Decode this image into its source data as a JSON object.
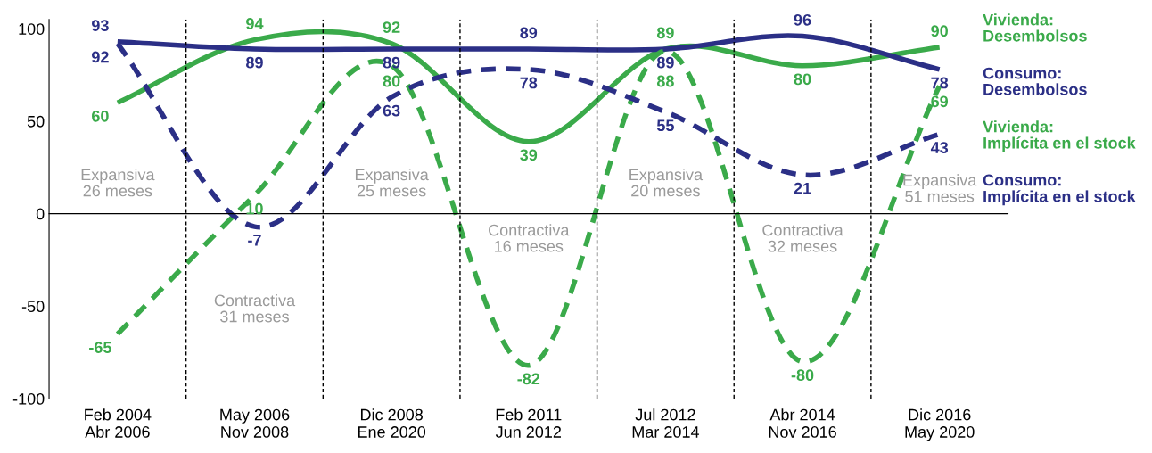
{
  "chart_data": {
    "type": "line",
    "categories": [
      "Feb 2004\nAbr 2006",
      "May 2006\nNov 2008",
      "Dic 2008\nEne 2020",
      "Feb 2011\nJun 2012",
      "Jul 2012\nMar 2014",
      "Abr 2014\nNov 2016",
      "Dic 2016\nMay 2020"
    ],
    "series": [
      {
        "name": "Vivienda:\nDesembolsos",
        "color": "#3aaa4a",
        "line_style": "solid",
        "values": [
          60,
          94,
          92,
          39,
          89,
          80,
          90
        ]
      },
      {
        "name": "Consumo:\nDesembolsos",
        "color": "#2b2f86",
        "line_style": "solid",
        "values": [
          93,
          89,
          89,
          89,
          89,
          96,
          78
        ]
      },
      {
        "name": "Vivienda:\nImplícita en el stock",
        "color": "#3aaa4a",
        "line_style": "dashed",
        "values": [
          -65,
          10,
          80,
          -82,
          88,
          -80,
          69
        ]
      },
      {
        "name": "Consumo:\nImplícita en el stock",
        "color": "#2b2f86",
        "line_style": "dashed",
        "values": [
          92,
          -7,
          63,
          78,
          55,
          21,
          43
        ]
      }
    ],
    "ylim": [
      -100,
      105
    ],
    "yticks": [
      -100,
      -50,
      0,
      50,
      100
    ],
    "data_labels": true,
    "legend": "right",
    "grid": false,
    "annotations": [
      "Expansiva\n26 meses",
      "Contractiva\n31 meses",
      "Expansiva\n25 meses",
      "Contractiva\n16 meses",
      "Expansiva\n20 meses",
      "Contractiva\n32 meses",
      "Expansiva\n51 meses"
    ]
  }
}
